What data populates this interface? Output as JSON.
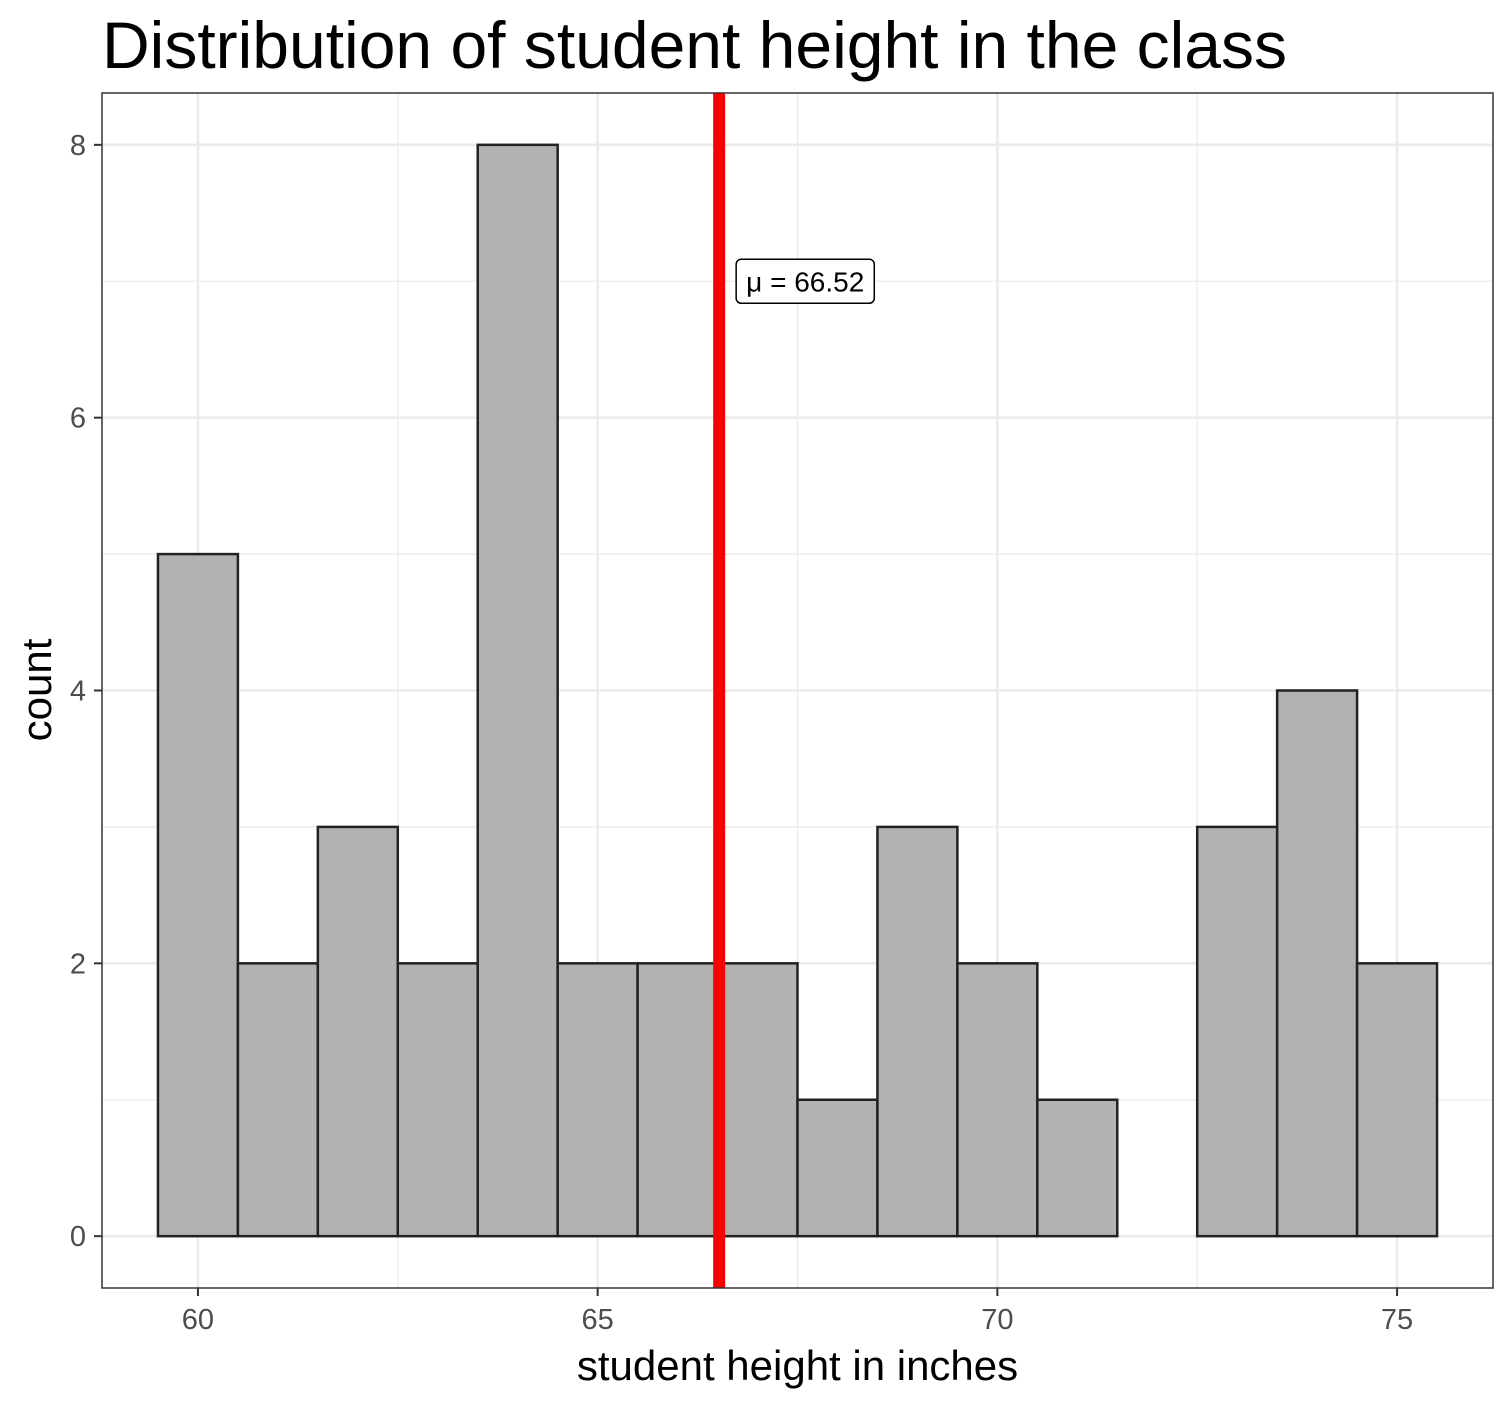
{
  "chart_data": {
    "type": "bar",
    "title": "Distribution of student height in the class",
    "xlabel": "student height in inches",
    "ylabel": "count",
    "bin_width": 1,
    "bins": [
      {
        "x": 60,
        "count": 5
      },
      {
        "x": 61,
        "count": 2
      },
      {
        "x": 62,
        "count": 3
      },
      {
        "x": 63,
        "count": 2
      },
      {
        "x": 64,
        "count": 8
      },
      {
        "x": 65,
        "count": 2
      },
      {
        "x": 66,
        "count": 2
      },
      {
        "x": 67,
        "count": 2
      },
      {
        "x": 68,
        "count": 1
      },
      {
        "x": 69,
        "count": 3
      },
      {
        "x": 70,
        "count": 2
      },
      {
        "x": 71,
        "count": 1
      },
      {
        "x": 72,
        "count": 0
      },
      {
        "x": 73,
        "count": 3
      },
      {
        "x": 74,
        "count": 4
      },
      {
        "x": 75,
        "count": 2
      }
    ],
    "x_ticks": [
      60,
      65,
      70,
      75
    ],
    "y_ticks": [
      0,
      2,
      4,
      6,
      8
    ],
    "xlim": [
      58.8,
      76.2
    ],
    "ylim": [
      -0.38,
      8.38
    ],
    "grid": true,
    "mean_line": {
      "value": 66.52,
      "label": "μ = 66.52",
      "label_y": 7,
      "color": "#ff0000"
    },
    "colors": {
      "bar_fill": "#b2b2b2",
      "bar_edge": "#222222",
      "grid": "#ebebeb",
      "panel_border": "#333333"
    }
  }
}
